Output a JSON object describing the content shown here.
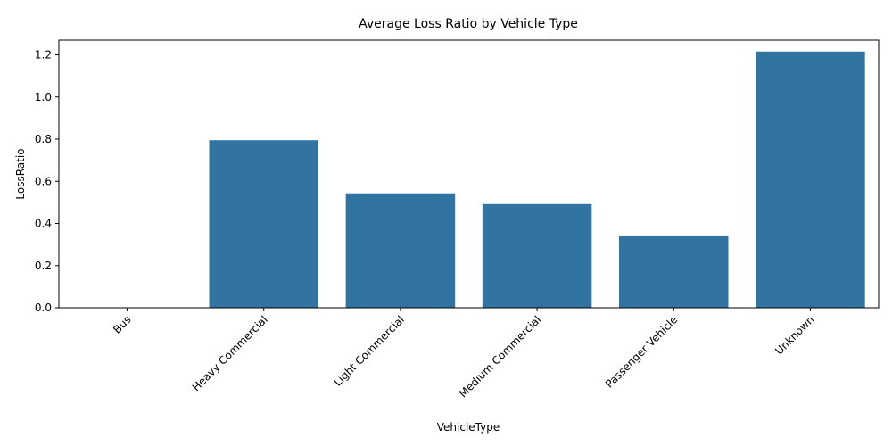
{
  "chart_data": {
    "type": "bar",
    "title": "Average Loss Ratio by Vehicle Type",
    "xlabel": "VehicleType",
    "ylabel": "LossRatio",
    "categories": [
      "Bus",
      "Heavy Commercial",
      "Light Commercial",
      "Medium Commercial",
      "Passenger Vehicle",
      "Unknown"
    ],
    "values": [
      0.0,
      0.795,
      0.543,
      0.492,
      0.339,
      1.216
    ],
    "ylim": [
      0,
      1.27
    ],
    "yticks": [
      0.0,
      0.2,
      0.4,
      0.6,
      0.8,
      1.0,
      1.2
    ],
    "ytick_labels": [
      "0.0",
      "0.2",
      "0.4",
      "0.6",
      "0.8",
      "1.0",
      "1.2"
    ],
    "grid": false,
    "legend": "none",
    "bar_color": "#3274a1"
  }
}
